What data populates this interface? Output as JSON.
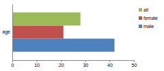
{
  "chart_data": {
    "type": "bar",
    "orientation": "horizontal",
    "legend": "right",
    "grid": false,
    "categories": [
      "age"
    ],
    "series": [
      {
        "name": "male",
        "color": "#4f81bd",
        "values": [
          42
        ]
      },
      {
        "name": "female",
        "color": "#c0504d",
        "values": [
          21
        ]
      },
      {
        "name": "all",
        "color": "#9bbb59",
        "values": [
          28
        ]
      }
    ],
    "xlim": [
      0,
      50
    ],
    "xticks": [
      0,
      10,
      20,
      30,
      40,
      50
    ]
  }
}
